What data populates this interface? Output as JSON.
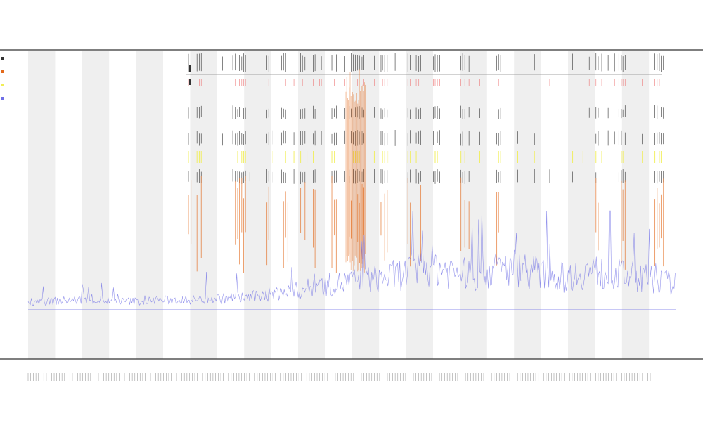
{
  "chart_data": {
    "type": "line",
    "title": "",
    "subtitle_lines": [
      "",
      ""
    ],
    "xlabel": "",
    "ylabel": "",
    "legend_position": "left",
    "x_tick_count": 240,
    "band_count": 24,
    "grid": false,
    "series": [
      {
        "color": "#6f6fe6",
        "kind": "continuous",
        "values": [
          8,
          8,
          9,
          9,
          8,
          8,
          9,
          9,
          10,
          11,
          12,
          15,
          18,
          22,
          25,
          28,
          30,
          35,
          42,
          36,
          32,
          38,
          40,
          33,
          30,
          36,
          34,
          32,
          28,
          24
        ]
      },
      {
        "color": "#e36a1c",
        "kind": "spikes"
      },
      {
        "color": "#f1ee55",
        "kind": "spikes"
      },
      {
        "color": "#333333",
        "kind": "spikes"
      }
    ],
    "legend": [
      "",
      "",
      "",
      ""
    ]
  },
  "colors": {
    "band": "#efefef",
    "axis": "#333333",
    "blue": "#6f6fe6",
    "orange": "#e36a1c",
    "yellow": "#f1ee55",
    "dark": "#333333",
    "red": "#ee7777"
  }
}
